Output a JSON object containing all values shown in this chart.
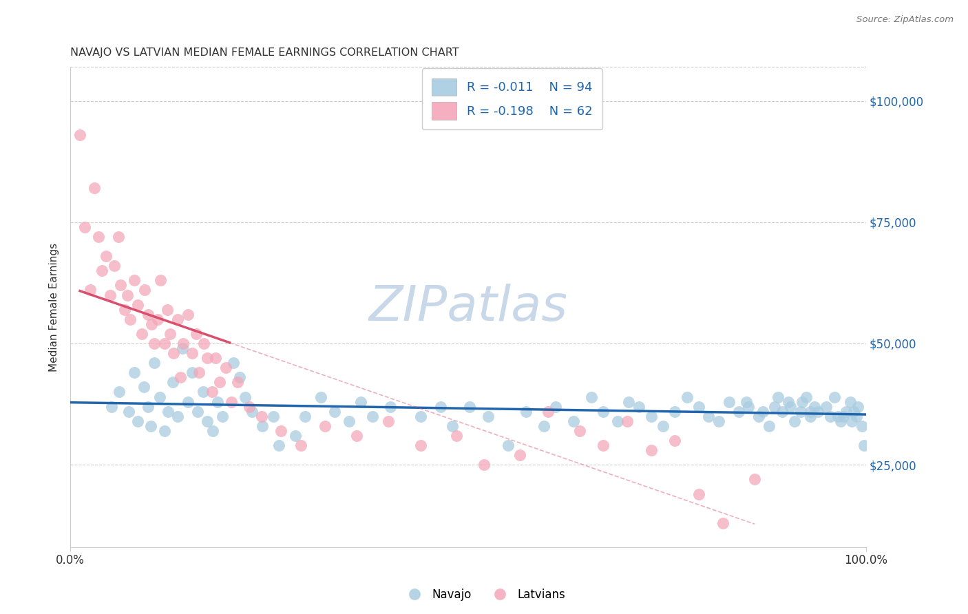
{
  "title": "NAVAJO VS LATVIAN MEDIAN FEMALE EARNINGS CORRELATION CHART",
  "source_text": "Source: ZipAtlas.com",
  "ylabel": "Median Female Earnings",
  "xmin": 0.0,
  "xmax": 100.0,
  "ymin": 8000,
  "ymax": 107000,
  "yticks": [
    25000,
    50000,
    75000,
    100000
  ],
  "ytick_labels": [
    "$25,000",
    "$50,000",
    "$75,000",
    "$100,000"
  ],
  "xtick_labels": [
    "0.0%",
    "100.0%"
  ],
  "navajo_color": "#a8cce0",
  "latvian_color": "#f4a7b9",
  "navajo_line_color": "#2166ac",
  "latvian_line_color": "#d94f6e",
  "latvian_dash_color": "#f4a7b9",
  "navajo_R": -0.011,
  "navajo_N": 94,
  "latvian_R": -0.198,
  "latvian_N": 62,
  "navajo_x": [
    5.2,
    6.1,
    7.3,
    8.0,
    8.5,
    9.2,
    9.8,
    10.1,
    10.5,
    11.2,
    11.8,
    12.3,
    12.9,
    13.5,
    14.1,
    14.8,
    15.3,
    16.0,
    16.7,
    17.2,
    17.9,
    18.5,
    19.1,
    20.5,
    21.3,
    22.0,
    22.8,
    24.1,
    25.5,
    26.2,
    28.3,
    29.5,
    31.5,
    33.2,
    35.0,
    36.5,
    38.0,
    40.2,
    44.0,
    46.5,
    48.0,
    50.2,
    52.5,
    55.0,
    57.3,
    59.5,
    61.0,
    63.2,
    65.5,
    67.0,
    68.8,
    70.2,
    71.5,
    73.0,
    74.5,
    76.0,
    77.5,
    79.0,
    80.2,
    81.5,
    82.8,
    84.0,
    85.2,
    86.5,
    87.8,
    88.9,
    89.5,
    90.5,
    91.0,
    91.8,
    92.0,
    92.5,
    93.0,
    93.5,
    94.0,
    95.0,
    95.5,
    96.0,
    96.8,
    97.2,
    97.5,
    98.0,
    98.5,
    98.8,
    99.0,
    99.5,
    99.8,
    85.0,
    87.0,
    88.5,
    90.2,
    93.0,
    96.5,
    98.2
  ],
  "navajo_y": [
    37000,
    40000,
    36000,
    44000,
    34000,
    41000,
    37000,
    33000,
    46000,
    39000,
    32000,
    36000,
    42000,
    35000,
    49000,
    38000,
    44000,
    36000,
    40000,
    34000,
    32000,
    38000,
    35000,
    46000,
    43000,
    39000,
    36000,
    33000,
    35000,
    29000,
    31000,
    35000,
    39000,
    36000,
    34000,
    38000,
    35000,
    37000,
    35000,
    37000,
    33000,
    37000,
    35000,
    29000,
    36000,
    33000,
    37000,
    34000,
    39000,
    36000,
    34000,
    38000,
    37000,
    35000,
    33000,
    36000,
    39000,
    37000,
    35000,
    34000,
    38000,
    36000,
    37000,
    35000,
    33000,
    39000,
    36000,
    37000,
    34000,
    36000,
    38000,
    39000,
    35000,
    37000,
    36000,
    37000,
    35000,
    39000,
    34000,
    35000,
    36000,
    38000,
    36000,
    35000,
    37000,
    33000,
    29000,
    38000,
    36000,
    37000,
    38000,
    36000,
    35000,
    34000
  ],
  "latvian_x": [
    1.2,
    1.8,
    2.5,
    3.0,
    3.5,
    4.0,
    4.5,
    5.0,
    5.5,
    6.0,
    6.3,
    6.8,
    7.2,
    7.5,
    8.0,
    8.5,
    9.0,
    9.3,
    9.8,
    10.2,
    10.5,
    11.0,
    11.3,
    11.8,
    12.2,
    12.5,
    13.0,
    13.5,
    13.8,
    14.2,
    14.8,
    15.3,
    15.8,
    16.2,
    16.8,
    17.2,
    17.8,
    18.2,
    18.8,
    19.5,
    20.2,
    21.0,
    22.5,
    24.0,
    26.5,
    29.0,
    32.0,
    36.0,
    40.0,
    44.0,
    48.5,
    52.0,
    56.5,
    60.0,
    64.0,
    67.0,
    70.0,
    73.0,
    76.0,
    79.0,
    82.0,
    86.0
  ],
  "latvian_y": [
    93000,
    74000,
    61000,
    82000,
    72000,
    65000,
    68000,
    60000,
    66000,
    72000,
    62000,
    57000,
    60000,
    55000,
    63000,
    58000,
    52000,
    61000,
    56000,
    54000,
    50000,
    55000,
    63000,
    50000,
    57000,
    52000,
    48000,
    55000,
    43000,
    50000,
    56000,
    48000,
    52000,
    44000,
    50000,
    47000,
    40000,
    47000,
    42000,
    45000,
    38000,
    42000,
    37000,
    35000,
    32000,
    29000,
    33000,
    31000,
    34000,
    29000,
    31000,
    25000,
    27000,
    36000,
    32000,
    29000,
    34000,
    28000,
    30000,
    19000,
    13000,
    22000
  ],
  "latvian_solid_xmax": 20.0,
  "watermark_text": "ZIPatlas",
  "watermark_color": "#c8d8e8"
}
